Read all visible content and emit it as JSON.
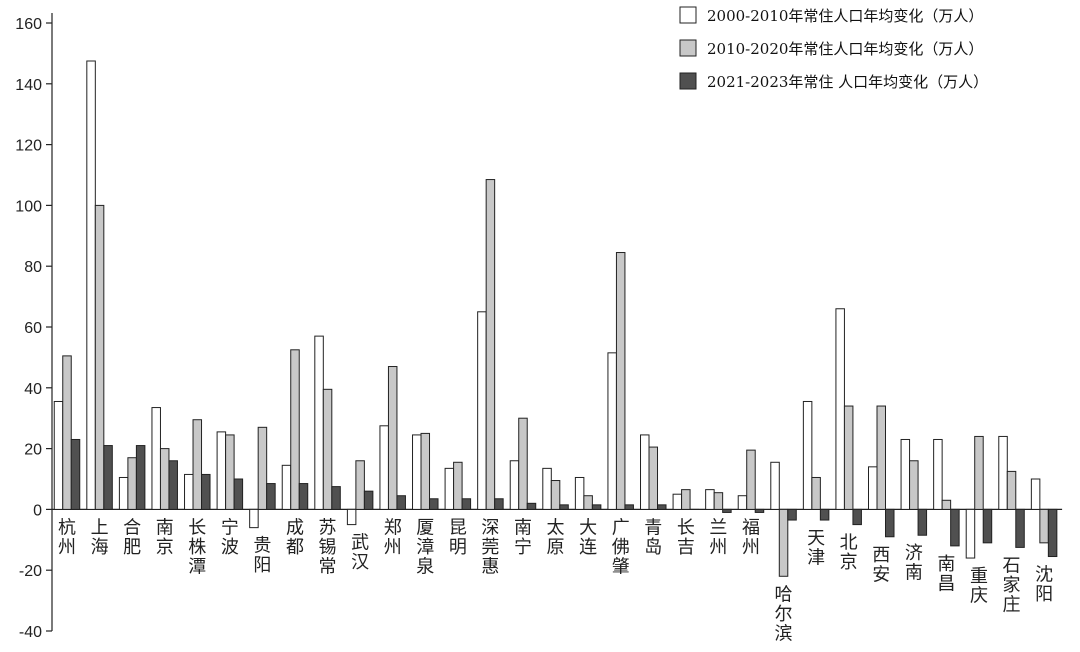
{
  "chart_data": {
    "type": "bar",
    "title": "",
    "xlabel": "",
    "ylabel": "",
    "ylim": [
      -40,
      160
    ],
    "yticks": [
      -40,
      -20,
      0,
      20,
      40,
      60,
      80,
      100,
      120,
      140,
      160
    ],
    "ytick_labels": [
      "-40",
      "-20",
      "0",
      "20",
      "40",
      "60",
      "80",
      "100",
      "120",
      "140",
      "160"
    ],
    "grid": false,
    "legend_position": "top-right",
    "categories": [
      "杭州",
      "上海",
      "合肥",
      "南京",
      "长株潭",
      "宁波",
      "贵阳",
      "成都",
      "苏锡常",
      "武汉",
      "郑州",
      "厦漳泉",
      "昆明",
      "深莞惠",
      "南宁",
      "太原",
      "大连",
      "广佛肇",
      "青岛",
      "长吉",
      "兰州",
      "福州",
      "哈尔滨",
      "天津",
      "北京",
      "西安",
      "济南",
      "南昌",
      "重庆",
      "石家庄",
      "沈阳"
    ],
    "series": [
      {
        "name": "2000-2010年常住人口年均变化（万人）",
        "color": "#ffffff",
        "values": [
          35.5,
          147.5,
          10.5,
          33.5,
          11.5,
          25.5,
          -6,
          14.5,
          57,
          -5,
          27.5,
          24.5,
          13.5,
          65,
          16,
          13.5,
          10.5,
          51.5,
          24.5,
          5,
          6.5,
          4.5,
          15.5,
          35.5,
          66,
          14,
          23,
          23,
          -16,
          24,
          10
        ]
      },
      {
        "name": "2010-2020年常住人口年均变化（万人）",
        "color": "#c8c8c8",
        "values": [
          50.5,
          100,
          17,
          20,
          29.5,
          24.5,
          27,
          52.5,
          39.5,
          16,
          47,
          25,
          15.5,
          108.5,
          30,
          9.5,
          4.5,
          84.5,
          20.5,
          6.5,
          5.5,
          19.5,
          -22,
          10.5,
          34,
          34,
          16,
          3,
          24,
          12.5,
          -11
        ]
      },
      {
        "name": "2021-2023年常住 人口年均变化（万人）",
        "color": "#505050",
        "values": [
          23,
          21,
          21,
          16,
          11.5,
          10,
          8.5,
          8.5,
          7.5,
          6,
          4.5,
          3.5,
          3.5,
          3.5,
          2,
          1.5,
          1.5,
          1.5,
          1.5,
          0,
          -1,
          -1,
          -3.5,
          -3.5,
          -5,
          -9,
          -8.5,
          -12,
          -11,
          -12.5,
          -15.5
        ]
      }
    ]
  }
}
